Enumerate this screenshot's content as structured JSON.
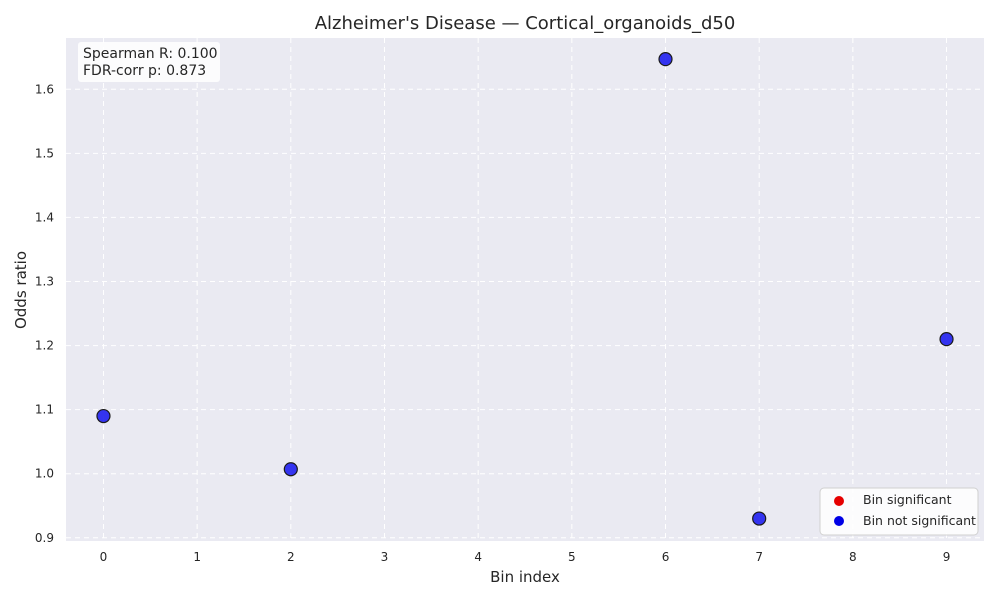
{
  "chart_data": {
    "type": "scatter",
    "title": "Alzheimer's Disease — Cortical_organoids_d50",
    "xlabel": "Bin index",
    "ylabel": "Odds ratio",
    "xlim": [
      -0.4,
      9.4
    ],
    "ylim": [
      0.895,
      1.68
    ],
    "xticks": [
      0,
      1,
      2,
      3,
      4,
      5,
      6,
      7,
      8,
      9
    ],
    "yticks": [
      0.9,
      1.0,
      1.1,
      1.2,
      1.3,
      1.4,
      1.5,
      1.6
    ],
    "ytick_labels": [
      "0.9",
      "1.0",
      "1.1",
      "1.2",
      "1.3",
      "1.4",
      "1.5",
      "1.6"
    ],
    "grid": true,
    "series": [
      {
        "name": "Bin not significant",
        "color": "#2020f0",
        "points": [
          {
            "x": 0,
            "y": 1.09
          },
          {
            "x": 2,
            "y": 1.007
          },
          {
            "x": 6,
            "y": 1.647
          },
          {
            "x": 7,
            "y": 0.93
          },
          {
            "x": 9,
            "y": 1.21
          }
        ]
      }
    ],
    "legend": {
      "position": "lower-right",
      "entries": [
        {
          "label": "Bin significant",
          "color": "#e60000"
        },
        {
          "label": "Bin not significant",
          "color": "#0000e6"
        }
      ]
    },
    "annotation": {
      "position": "top-left",
      "lines": [
        "Spearman R: 0.100",
        "FDR-corr p: 0.873"
      ]
    },
    "colors": {
      "plot_background": "#eaeaf2",
      "grid": "#ffffff",
      "point_edge": "#1a1a1a"
    }
  }
}
